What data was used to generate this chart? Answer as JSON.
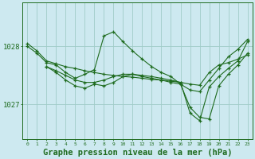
{
  "background_color": "#cde9f0",
  "plot_bg_color": "#cde9f0",
  "line_color": "#1e6b1e",
  "grid_color": "#a0ccc8",
  "xlabel": "Graphe pression niveau de la mer (hPa)",
  "xlabel_fontsize": 7.5,
  "ylabel_ticks": [
    1027,
    1028
  ],
  "xlim": [
    -0.5,
    23.5
  ],
  "ylim": [
    1026.4,
    1028.75
  ],
  "xticks": [
    0,
    1,
    2,
    3,
    4,
    5,
    6,
    7,
    8,
    9,
    10,
    11,
    12,
    13,
    14,
    15,
    16,
    17,
    18,
    19,
    20,
    21,
    22,
    23
  ],
  "series": [
    {
      "x": [
        0,
        1,
        2,
        3,
        4,
        5,
        6,
        7,
        8,
        9,
        10,
        11,
        12,
        13,
        14,
        15,
        16,
        17,
        18,
        19,
        20,
        21,
        22,
        23
      ],
      "y": [
        1028.05,
        1027.92,
        1027.75,
        1027.7,
        1027.65,
        1027.62,
        1027.58,
        1027.55,
        1027.52,
        1027.5,
        1027.48,
        1027.47,
        1027.45,
        1027.43,
        1027.42,
        1027.4,
        1027.38,
        1027.35,
        1027.33,
        1027.55,
        1027.68,
        1027.72,
        1027.78,
        1027.85
      ]
    },
    {
      "x": [
        0,
        1,
        2,
        3,
        4,
        5,
        6,
        7,
        8,
        9,
        10,
        11,
        12,
        13,
        14,
        15,
        16,
        17,
        18,
        19,
        20,
        21,
        22,
        23
      ],
      "y": [
        1028.0,
        1027.88,
        1027.72,
        1027.68,
        1027.55,
        1027.45,
        1027.52,
        1027.6,
        1028.18,
        1028.25,
        1028.08,
        1027.92,
        1027.78,
        1027.65,
        1027.55,
        1027.48,
        1027.35,
        1027.25,
        1027.22,
        1027.42,
        1027.62,
        1027.82,
        1027.95,
        1028.12
      ]
    },
    {
      "x": [
        2,
        3,
        4,
        5,
        6,
        7,
        8,
        9,
        10,
        11,
        12,
        13,
        14,
        15,
        16,
        17,
        18,
        19,
        20,
        21,
        22,
        23
      ],
      "y": [
        1027.65,
        1027.58,
        1027.5,
        1027.42,
        1027.38,
        1027.38,
        1027.42,
        1027.48,
        1027.52,
        1027.52,
        1027.5,
        1027.48,
        1027.45,
        1027.42,
        1027.38,
        1026.85,
        1026.72,
        1027.3,
        1027.48,
        1027.62,
        1027.75,
        1028.08
      ]
    },
    {
      "x": [
        2,
        3,
        4,
        5,
        6,
        7,
        8,
        9,
        10,
        11,
        12,
        13,
        14,
        15,
        16,
        17,
        18,
        19,
        20,
        21,
        22,
        23
      ],
      "y": [
        1027.65,
        1027.55,
        1027.42,
        1027.32,
        1027.28,
        1027.35,
        1027.32,
        1027.38,
        1027.48,
        1027.52,
        1027.48,
        1027.45,
        1027.42,
        1027.38,
        1027.35,
        1026.95,
        1026.78,
        1026.75,
        1027.32,
        1027.52,
        1027.68,
        1027.88
      ]
    }
  ]
}
